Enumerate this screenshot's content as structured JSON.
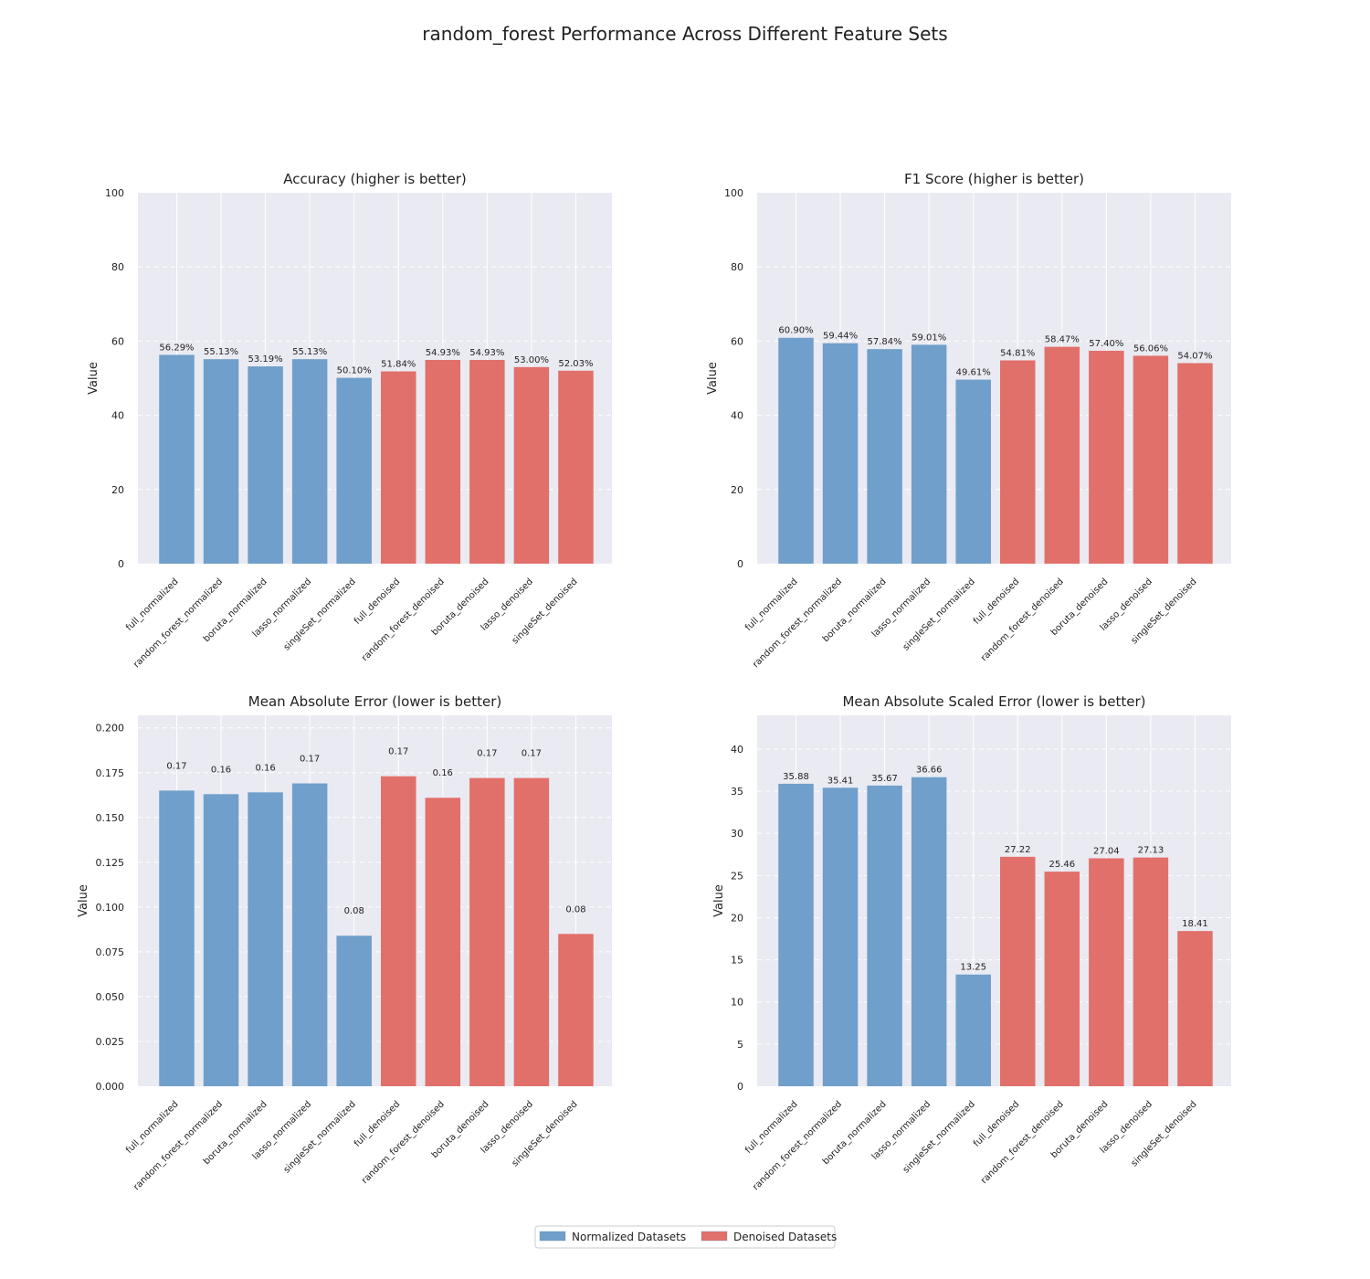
{
  "title": "random_forest Performance Across Different Feature Sets",
  "colors": {
    "normalized": "#6f9fca",
    "denoised": "#e1706a",
    "plot_bg": "#eaeaf2",
    "grid": "#ffffff"
  },
  "legend": {
    "placement": "bottom-center",
    "items": [
      {
        "label": "Normalized Datasets",
        "color": "#6f9fca"
      },
      {
        "label": "Denoised Datasets",
        "color": "#e1706a"
      }
    ]
  },
  "chart_data": [
    {
      "type": "bar",
      "title": "Accuracy (higher is better)",
      "ylabel": "Value",
      "ylim": [
        0,
        100
      ],
      "yticks": [
        "0",
        "20",
        "40",
        "60",
        "80",
        "100"
      ],
      "grid": true,
      "categories": [
        "full_normalized",
        "random_forest_normalized",
        "boruta_normalized",
        "lasso_normalized",
        "singleSet_normalized",
        "full_denoised",
        "random_forest_denoised",
        "boruta_denoised",
        "lasso_denoised",
        "singleSet_denoised"
      ],
      "groups": [
        "normalized",
        "normalized",
        "normalized",
        "normalized",
        "normalized",
        "denoised",
        "denoised",
        "denoised",
        "denoised",
        "denoised"
      ],
      "values": [
        56.29,
        55.13,
        53.19,
        55.13,
        50.1,
        51.84,
        54.93,
        54.93,
        53.0,
        52.03
      ],
      "labels": [
        "56.29%",
        "55.13%",
        "53.19%",
        "55.13%",
        "50.10%",
        "51.84%",
        "54.93%",
        "54.93%",
        "53.00%",
        "52.03%"
      ]
    },
    {
      "type": "bar",
      "title": "F1 Score (higher is better)",
      "ylabel": "Value",
      "ylim": [
        0,
        100
      ],
      "yticks": [
        "0",
        "20",
        "40",
        "60",
        "80",
        "100"
      ],
      "grid": true,
      "categories": [
        "full_normalized",
        "random_forest_normalized",
        "boruta_normalized",
        "lasso_normalized",
        "singleSet_normalized",
        "full_denoised",
        "random_forest_denoised",
        "boruta_denoised",
        "lasso_denoised",
        "singleSet_denoised"
      ],
      "groups": [
        "normalized",
        "normalized",
        "normalized",
        "normalized",
        "normalized",
        "denoised",
        "denoised",
        "denoised",
        "denoised",
        "denoised"
      ],
      "values": [
        60.9,
        59.44,
        57.84,
        59.01,
        49.61,
        54.81,
        58.47,
        57.4,
        56.06,
        54.07
      ],
      "labels": [
        "60.90%",
        "59.44%",
        "57.84%",
        "59.01%",
        "49.61%",
        "54.81%",
        "58.47%",
        "57.40%",
        "56.06%",
        "54.07%"
      ]
    },
    {
      "type": "bar",
      "title": "Mean Absolute Error (lower is better)",
      "ylabel": "Value",
      "ylim": [
        0,
        0.207
      ],
      "yticks": [
        "0.000",
        "0.025",
        "0.050",
        "0.075",
        "0.100",
        "0.125",
        "0.150",
        "0.175",
        "0.200"
      ],
      "grid": true,
      "categories": [
        "full_normalized",
        "random_forest_normalized",
        "boruta_normalized",
        "lasso_normalized",
        "singleSet_normalized",
        "full_denoised",
        "random_forest_denoised",
        "boruta_denoised",
        "lasso_denoised",
        "singleSet_denoised"
      ],
      "groups": [
        "normalized",
        "normalized",
        "normalized",
        "normalized",
        "normalized",
        "denoised",
        "denoised",
        "denoised",
        "denoised",
        "denoised"
      ],
      "values": [
        0.165,
        0.163,
        0.164,
        0.169,
        0.084,
        0.173,
        0.161,
        0.172,
        0.172,
        0.085
      ],
      "labels": [
        "0.17",
        "0.16",
        "0.16",
        "0.17",
        "0.08",
        "0.17",
        "0.16",
        "0.17",
        "0.17",
        "0.08"
      ]
    },
    {
      "type": "bar",
      "title": "Mean Absolute Scaled Error (lower is better)",
      "ylabel": "Value",
      "ylim": [
        0,
        44
      ],
      "yticks": [
        "0",
        "5",
        "10",
        "15",
        "20",
        "25",
        "30",
        "35",
        "40"
      ],
      "grid": true,
      "categories": [
        "full_normalized",
        "random_forest_normalized",
        "boruta_normalized",
        "lasso_normalized",
        "singleSet_normalized",
        "full_denoised",
        "random_forest_denoised",
        "boruta_denoised",
        "lasso_denoised",
        "singleSet_denoised"
      ],
      "groups": [
        "normalized",
        "normalized",
        "normalized",
        "normalized",
        "normalized",
        "denoised",
        "denoised",
        "denoised",
        "denoised",
        "denoised"
      ],
      "values": [
        35.88,
        35.41,
        35.67,
        36.66,
        13.25,
        27.22,
        25.46,
        27.04,
        27.13,
        18.41
      ],
      "labels": [
        "35.88",
        "35.41",
        "35.67",
        "36.66",
        "13.25",
        "27.22",
        "25.46",
        "27.04",
        "27.13",
        "18.41"
      ]
    }
  ]
}
